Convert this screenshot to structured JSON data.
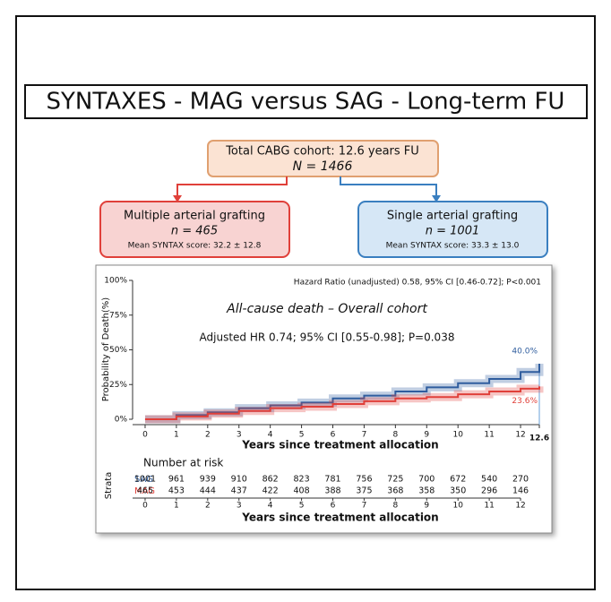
{
  "title": "SYNTAXES - MAG versus SAG - Long-term FU",
  "flow": {
    "root": {
      "label": "Total CABG cohort: 12.6 years FU",
      "n": "N =  1466"
    },
    "left": {
      "label": "Multiple arterial grafting",
      "n": "n = 465",
      "score": "Mean SYNTAX score: 32.2 ± 12.8"
    },
    "right": {
      "label": "Single arterial grafting",
      "n": "n = 1001",
      "score": "Mean SYNTAX score: 33.3 ± 13.0"
    }
  },
  "chart_data": {
    "type": "line",
    "title": "All-cause death – Overall cohort",
    "annotations": [
      "Hazard Ratio (unadjusted) 0.58, 95% CI [0.46-0.72]; P<0.001",
      "Adjusted HR 0.74; 95% CI [0.55-0.98]; P=0.038"
    ],
    "y_label": "Probability of Death(%)",
    "x_label": "Years since treatment allocation",
    "x": [
      0,
      1,
      2,
      3,
      4,
      5,
      6,
      7,
      8,
      9,
      10,
      11,
      12,
      12.6
    ],
    "series": [
      {
        "name": "SAG",
        "color": "#2f5d9e",
        "values": [
          0,
          3,
          5,
          8,
          10,
          12,
          15,
          17,
          20,
          23,
          26,
          29,
          34,
          40
        ],
        "value_labels": [
          null,
          null,
          null,
          null,
          null,
          null,
          null,
          null,
          null,
          null,
          null,
          null,
          null,
          "40.0%"
        ]
      },
      {
        "name": "MAG",
        "color": "#e0403a",
        "values": [
          0,
          2,
          4,
          6,
          8,
          9,
          11,
          13,
          15,
          16,
          18,
          20,
          22,
          23.6
        ],
        "value_labels": [
          null,
          null,
          null,
          null,
          null,
          null,
          null,
          null,
          null,
          null,
          null,
          null,
          null,
          "23.6%"
        ]
      }
    ],
    "xlim": [
      -0.4,
      12.6
    ],
    "xticks": [
      0,
      1,
      2,
      3,
      4,
      5,
      6,
      7,
      8,
      9,
      10,
      11,
      12,
      12.6
    ],
    "ylim": [
      0,
      100
    ],
    "yticks": [
      {
        "value": 0,
        "label": "0%"
      },
      {
        "value": 25,
        "label": "25%"
      },
      {
        "value": 50,
        "label": "50%"
      },
      {
        "value": 75,
        "label": "75%"
      },
      {
        "value": 100,
        "label": "100%"
      }
    ]
  },
  "risk_table": {
    "title": "Number at risk",
    "strata_label": "Strata",
    "rows": [
      {
        "name": "SAG",
        "values": [
          1001,
          961,
          939,
          910,
          862,
          823,
          781,
          756,
          725,
          700,
          672,
          540,
          270
        ]
      },
      {
        "name": "MAG",
        "values": [
          465,
          453,
          444,
          437,
          422,
          408,
          388,
          375,
          368,
          358,
          350,
          296,
          146
        ]
      }
    ]
  }
}
